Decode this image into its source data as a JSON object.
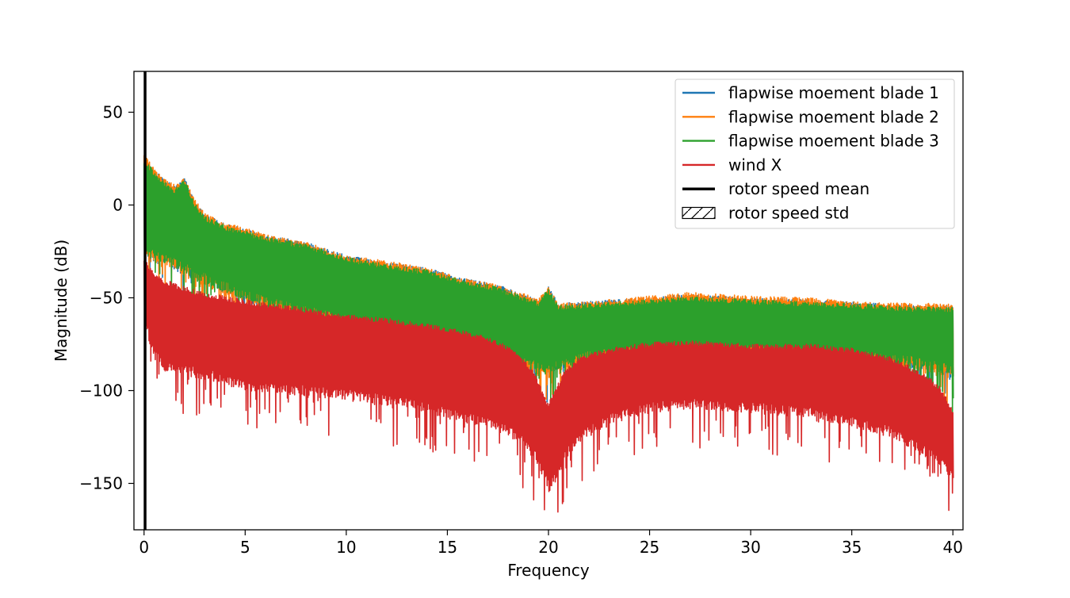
{
  "chart_data": {
    "type": "line",
    "xlabel": "Frequency",
    "ylabel": "Magnitude (dB)",
    "xlim": [
      -0.5,
      40.5
    ],
    "ylim": [
      -175,
      72
    ],
    "xticks": [
      0,
      5,
      10,
      15,
      20,
      25,
      30,
      35,
      40
    ],
    "xtick_labels": [
      "0",
      "5",
      "10",
      "15",
      "20",
      "25",
      "30",
      "35",
      "40"
    ],
    "yticks": [
      50,
      0,
      -50,
      -100,
      -150
    ],
    "ytick_labels": [
      "50",
      "0",
      "−50",
      "−100",
      "−150"
    ],
    "grid": false,
    "legend_position": "upper-right",
    "series": [
      {
        "name": "flapwise moement blade 1",
        "color": "#1f77b4",
        "kind": "band",
        "x": [
          0,
          0.3,
          0.6,
          1.0,
          1.5,
          2.0,
          2.5,
          3.0,
          4.0,
          5.0,
          6.0,
          8.0,
          10.0,
          12.0,
          14.0,
          16.0,
          17.5,
          18.5,
          19.5,
          20.0,
          20.5,
          22.0,
          25.0,
          27.0,
          30.0,
          33.0,
          35.0,
          38.0,
          40.0
        ],
        "upper": [
          26,
          22,
          18,
          14,
          10,
          15,
          2,
          -5,
          -10,
          -13,
          -16,
          -20,
          -27,
          -31,
          -34,
          -40,
          -43,
          -47,
          -51,
          -44,
          -53,
          -52,
          -50,
          -48,
          -50,
          -51,
          -52,
          -54,
          -54
        ],
        "lower": [
          -27,
          -30,
          -32,
          -33,
          -35,
          -38,
          -40,
          -43,
          -48,
          -52,
          -56,
          -61,
          -66,
          -70,
          -74,
          -79,
          -84,
          -88,
          -91,
          -92,
          -90,
          -85,
          -82,
          -81,
          -82,
          -83,
          -85,
          -88,
          -93
        ]
      },
      {
        "name": "flapwise moement blade 2",
        "color": "#ff7f0e",
        "kind": "band",
        "x": [
          0,
          0.3,
          0.6,
          1.0,
          1.5,
          2.0,
          2.5,
          3.0,
          4.0,
          5.0,
          6.0,
          8.0,
          10.0,
          12.0,
          14.0,
          16.0,
          17.5,
          18.5,
          19.5,
          20.0,
          20.5,
          22.0,
          25.0,
          27.0,
          30.0,
          33.0,
          35.0,
          38.0,
          40.0
        ],
        "upper": [
          27,
          23,
          19,
          14,
          11,
          15,
          3,
          -4,
          -10,
          -12,
          -16,
          -20,
          -27,
          -30,
          -34,
          -40,
          -43,
          -47,
          -50,
          -44,
          -53,
          -52,
          -49,
          -47,
          -49,
          -50,
          -52,
          -53,
          -53
        ],
        "lower": [
          -28,
          -31,
          -33,
          -34,
          -36,
          -39,
          -41,
          -44,
          -49,
          -53,
          -57,
          -62,
          -67,
          -71,
          -75,
          -80,
          -85,
          -89,
          -92,
          -93,
          -91,
          -86,
          -83,
          -82,
          -83,
          -84,
          -86,
          -89,
          -94
        ]
      },
      {
        "name": "flapwise moement blade 3",
        "color": "#2ca02c",
        "kind": "band",
        "x": [
          0,
          0.3,
          0.6,
          1.0,
          1.5,
          2.0,
          2.5,
          3.0,
          4.0,
          5.0,
          6.0,
          8.0,
          10.0,
          12.0,
          14.0,
          16.0,
          17.5,
          18.5,
          19.5,
          20.0,
          20.5,
          22.0,
          25.0,
          27.0,
          30.0,
          33.0,
          35.0,
          38.0,
          40.0
        ],
        "upper": [
          25,
          21,
          17,
          13,
          9,
          14,
          1,
          -6,
          -11,
          -14,
          -17,
          -21,
          -28,
          -32,
          -35,
          -41,
          -44,
          -48,
          -52,
          -45,
          -54,
          -53,
          -51,
          -49,
          -51,
          -52,
          -53,
          -55,
          -55
        ],
        "lower": [
          -26,
          -29,
          -31,
          -32,
          -34,
          -37,
          -39,
          -42,
          -47,
          -51,
          -55,
          -60,
          -65,
          -69,
          -73,
          -78,
          -83,
          -87,
          -90,
          -91,
          -89,
          -84,
          -81,
          -80,
          -81,
          -82,
          -84,
          -87,
          -92
        ]
      },
      {
        "name": "wind X",
        "color": "#d62728",
        "kind": "band",
        "x": [
          0,
          0.3,
          0.6,
          1.0,
          2.0,
          3.0,
          4.0,
          5.0,
          7.0,
          10.0,
          12.0,
          14.0,
          16.0,
          17.5,
          18.5,
          19.3,
          19.8,
          20.0,
          20.3,
          20.8,
          21.5,
          23.0,
          25.0,
          27.0,
          30.0,
          33.0,
          35.0,
          37.0,
          38.5,
          39.3,
          40.0
        ],
        "upper": [
          -28,
          -33,
          -37,
          -40,
          -44,
          -47,
          -49,
          -51,
          -54,
          -59,
          -61,
          -64,
          -68,
          -73,
          -80,
          -90,
          -103,
          -107,
          -100,
          -89,
          -82,
          -77,
          -74,
          -73,
          -75,
          -75,
          -77,
          -82,
          -90,
          -97,
          -110
        ],
        "lower": [
          -60,
          -80,
          -85,
          -90,
          -92,
          -94,
          -97,
          -100,
          -102,
          -105,
          -108,
          -112,
          -118,
          -122,
          -128,
          -138,
          -148,
          -155,
          -150,
          -138,
          -128,
          -118,
          -112,
          -110,
          -112,
          -115,
          -120,
          -125,
          -135,
          -140,
          -150
        ]
      },
      {
        "name": "rotor speed mean",
        "color": "#000000",
        "kind": "vline",
        "x": 0.05
      },
      {
        "name": "rotor speed std",
        "color": "#000000",
        "kind": "hatched-span",
        "x": [
          0.03,
          0.07
        ]
      }
    ]
  }
}
